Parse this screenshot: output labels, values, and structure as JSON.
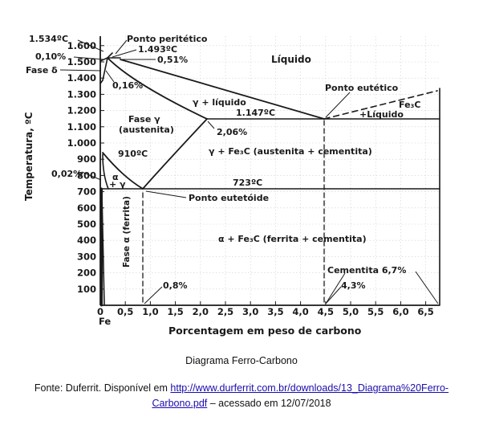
{
  "diagram": {
    "x_axis": {
      "label": "Porcentagem em peso de carbono",
      "ticks": [
        "0",
        "0,5",
        "1,0",
        "1,5",
        "2,0",
        "2,5",
        "3,0",
        "3,5",
        "4,0",
        "4,5",
        "5,0",
        "5,5",
        "6,0",
        "6,5"
      ],
      "origin_label": "Fe"
    },
    "y_axis": {
      "label": "Temperatura, ºC",
      "ticks": [
        "100",
        "200",
        "300",
        "400",
        "500",
        "600",
        "700",
        "800",
        "900",
        "1.000",
        "1.100",
        "1.200",
        "1.300",
        "1.400",
        "1.500",
        "1.600"
      ]
    },
    "labels": {
      "t1534": "1.534ºC",
      "c010": "0,10%",
      "fase_delta": "Fase δ",
      "ponto_peritetico": "Ponto peritético",
      "t1493": "1.493ºC",
      "c051": "0,51%",
      "liquido": "Líquido",
      "c016": "0,16%",
      "ponto_eutetico": "Ponto eutético",
      "gamma_liquido": "γ + líquido",
      "fe3c": "Fe₃C",
      "fe3c_liquido": "+Líquido",
      "t1147": "1.147ºC",
      "fase_gamma": "Fase γ",
      "austenita": "(austenita)",
      "c206": "2,06%",
      "t910": "910ºC",
      "gamma_fe3c": "γ + Fe₃C (austenita + cementita)",
      "c002": "0,02%",
      "alpha": "α",
      "plus_gamma": "+ γ",
      "t723": "723ºC",
      "ponto_eutetoide": "Ponto eutetóide",
      "fase_alpha_ferrita": "Fase α (ferrita)",
      "alpha_fe3c": "α + Fe₃C (ferrita + cementita)",
      "cementita": "Cementita 6,7%",
      "c08": "0,8%",
      "c43": "4,3%"
    }
  },
  "caption": "Diagrama Ferro-Carbono",
  "source": {
    "prefix": "Fonte: Duferrit. Disponível em ",
    "link_part1": "http://www.durferrit.com.br/downloads/13_Diagrama%20Ferro-",
    "link_part2": "Carbono.pdf",
    "suffix": " – acessado em 12/07/2018"
  },
  "colors": {
    "ink": "#1a1a1a",
    "link": "#1a0dab"
  }
}
